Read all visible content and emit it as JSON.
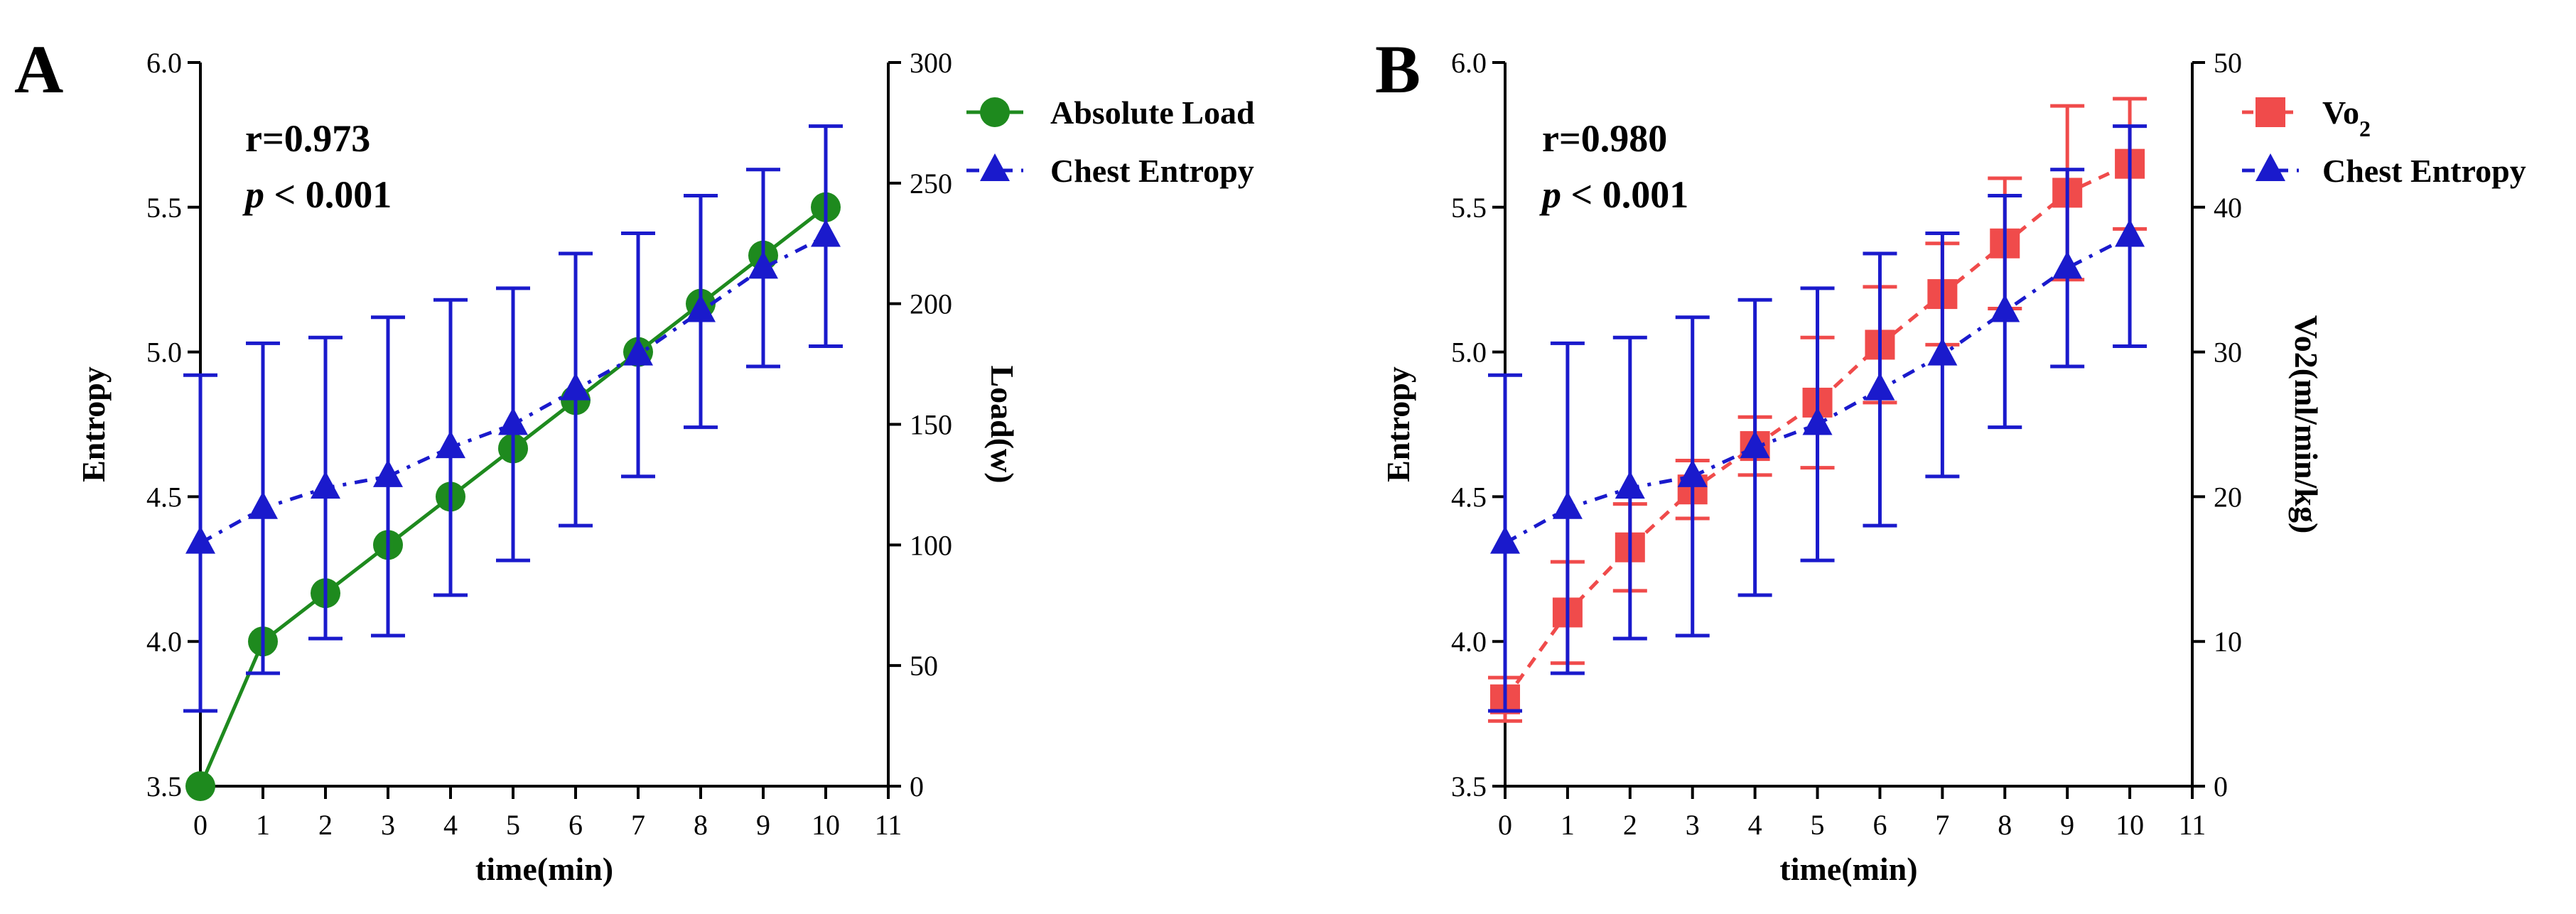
{
  "chart_data": [
    {
      "panel": "A",
      "type": "line",
      "xlabel": "time(min)",
      "ylabel": "Entropy",
      "y2label": "Load(w)",
      "x_ticks": [
        "0",
        "1",
        "2",
        "3",
        "4",
        "5",
        "6",
        "7",
        "8",
        "9",
        "10",
        "11"
      ],
      "xlim": [
        0,
        11
      ],
      "ylim": [
        3.5,
        6.0
      ],
      "y_ticks": [
        "3.5",
        "4.0",
        "4.5",
        "5.0",
        "5.5",
        "6.0"
      ],
      "y2lim": [
        0,
        300
      ],
      "y2_ticks": [
        "0",
        "50",
        "100",
        "150",
        "200",
        "250",
        "300"
      ],
      "annotation": {
        "r_text": "r=0.973",
        "p_symbol": "p",
        "p_rest": " < 0.001"
      },
      "series": [
        {
          "name": "Absolute Load",
          "axis": "right",
          "color": "#1e8a1e",
          "marker": "circle",
          "line": "solid",
          "x": [
            0,
            1,
            2,
            3,
            4,
            5,
            6,
            7,
            8,
            9,
            10
          ],
          "values": [
            0,
            60,
            80,
            100,
            120,
            140,
            160,
            180,
            200,
            220,
            240
          ],
          "errors": []
        },
        {
          "name": "Chest Entropy",
          "axis": "left",
          "color": "#1a1acc",
          "marker": "triangle",
          "line": "dashdot",
          "x": [
            0,
            1,
            2,
            3,
            4,
            5,
            6,
            7,
            8,
            9,
            10
          ],
          "values": [
            4.34,
            4.46,
            4.53,
            4.57,
            4.67,
            4.75,
            4.87,
            4.99,
            5.14,
            5.29,
            5.4
          ],
          "errors": [
            0.58,
            0.57,
            0.52,
            0.55,
            0.51,
            0.47,
            0.47,
            0.42,
            0.4,
            0.34,
            0.38
          ]
        }
      ]
    },
    {
      "panel": "B",
      "type": "line",
      "xlabel": "time(min)",
      "ylabel": "Entropy",
      "y2label": "Vo2(ml/min/kg)",
      "x_ticks": [
        "0",
        "1",
        "2",
        "3",
        "4",
        "5",
        "6",
        "7",
        "8",
        "9",
        "10",
        "11"
      ],
      "xlim": [
        0,
        11
      ],
      "ylim": [
        3.5,
        6.0
      ],
      "y_ticks": [
        "3.5",
        "4.0",
        "4.5",
        "5.0",
        "5.5",
        "6.0"
      ],
      "y2lim": [
        0,
        50
      ],
      "y2_ticks": [
        "0",
        "10",
        "20",
        "30",
        "40",
        "50"
      ],
      "annotation": {
        "r_text": "r=0.980",
        "p_symbol": "p",
        "p_rest": " < 0.001"
      },
      "series": [
        {
          "name": "Vo",
          "name_sub": "2",
          "axis": "right",
          "color": "#f04b4b",
          "marker": "square",
          "line": "dashed",
          "x": [
            0,
            1,
            2,
            3,
            4,
            5,
            6,
            7,
            8,
            9,
            10
          ],
          "values": [
            6,
            12,
            16.5,
            20.5,
            23.5,
            26.5,
            30.5,
            34,
            37.5,
            41,
            43
          ],
          "errors": [
            1.5,
            3.5,
            3,
            2,
            2,
            4.5,
            4,
            3.5,
            4.5,
            6,
            4.5
          ]
        },
        {
          "name": "Chest Entropy",
          "axis": "left",
          "color": "#1a1acc",
          "marker": "triangle",
          "line": "dashdot",
          "x": [
            0,
            1,
            2,
            3,
            4,
            5,
            6,
            7,
            8,
            9,
            10
          ],
          "values": [
            4.34,
            4.46,
            4.53,
            4.57,
            4.67,
            4.75,
            4.87,
            4.99,
            5.14,
            5.29,
            5.4
          ],
          "errors": [
            0.58,
            0.57,
            0.52,
            0.55,
            0.51,
            0.47,
            0.47,
            0.42,
            0.4,
            0.34,
            0.38
          ]
        }
      ]
    }
  ]
}
